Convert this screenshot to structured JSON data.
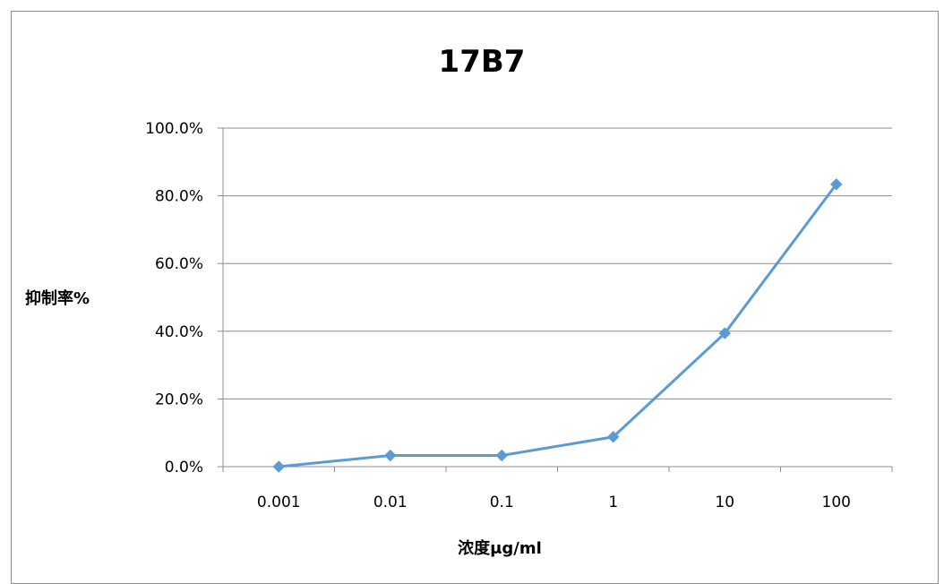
{
  "chart_data": {
    "type": "line",
    "title": "17B7",
    "xlabel": "浓度μg/ml",
    "ylabel": "抑制率%",
    "categories": [
      "0.001",
      "0.01",
      "0.1",
      "1",
      "10",
      "100"
    ],
    "series": [
      {
        "values": [
          0.0,
          3.3,
          3.3,
          8.8,
          39.4,
          83.4
        ]
      }
    ],
    "y_ticks": [
      "0.0%",
      "20.0%",
      "40.0%",
      "60.0%",
      "80.0%",
      "100.0%"
    ],
    "ylim": [
      0,
      100
    ],
    "grid": true,
    "legend": "none",
    "colors": {
      "series": "#5b9bd5",
      "grid": "#8c8c8c",
      "axis": "#8c8c8c"
    }
  }
}
